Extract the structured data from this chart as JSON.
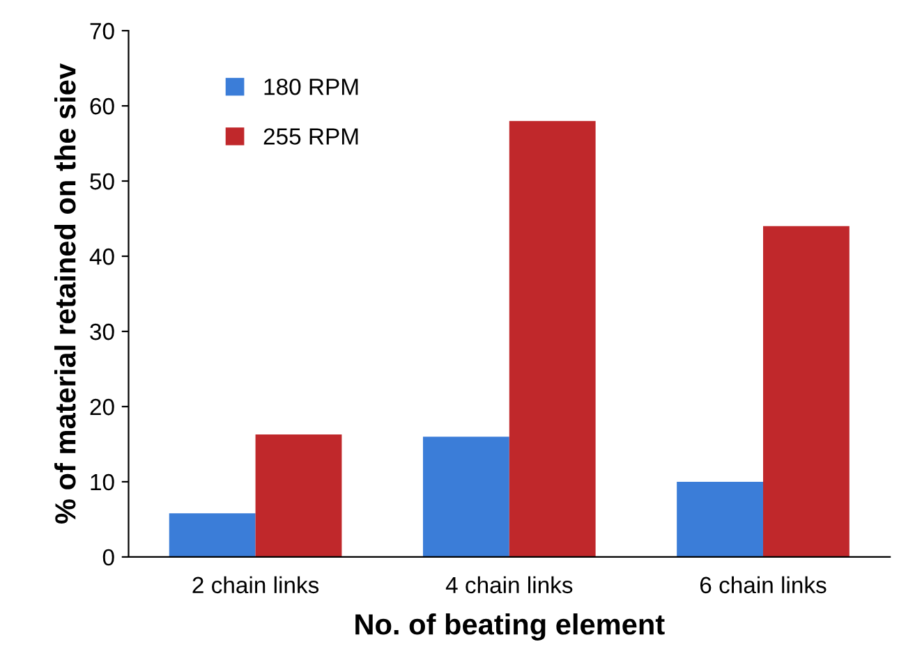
{
  "chart_data": {
    "type": "bar",
    "xlabel": "No. of beating element",
    "ylabel": "% of material retained on the siev",
    "categories": [
      "2 chain links",
      "4 chain links",
      "6 chain links"
    ],
    "series": [
      {
        "name": "180 RPM",
        "color": "#3b7dd8",
        "values": [
          5.8,
          16,
          10
        ]
      },
      {
        "name": "255 RPM",
        "color": "#c0282b",
        "values": [
          16.3,
          58,
          44
        ]
      }
    ],
    "ylim": [
      0,
      70
    ],
    "yticks": [
      0,
      10,
      20,
      30,
      40,
      50,
      60,
      70
    ],
    "grid": false,
    "legend": "top left"
  }
}
